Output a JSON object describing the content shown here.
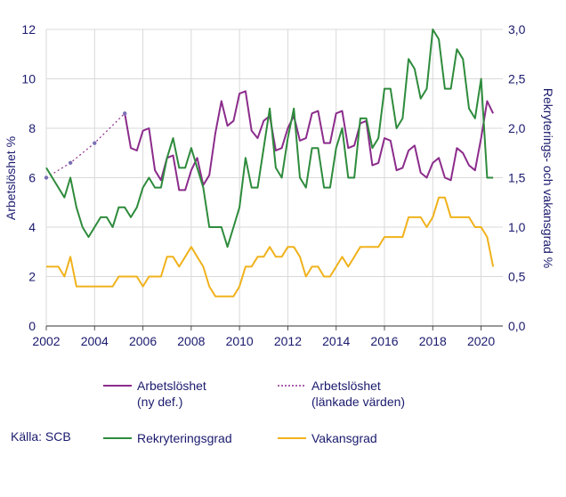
{
  "chart_data": {
    "type": "line",
    "source": "Källa: SCB",
    "x_ticks": [
      "2002",
      "2004",
      "2006",
      "2008",
      "2010",
      "2012",
      "2014",
      "2016",
      "2018",
      "2020"
    ],
    "y_left": {
      "label": "Arbetslöshet  %",
      "range": [
        0,
        12
      ],
      "ticks": [
        "0",
        "2",
        "4",
        "6",
        "8",
        "10",
        "12"
      ]
    },
    "y_right": {
      "label": "Rekryterings- och vakansgrad %",
      "range": [
        0,
        3
      ],
      "ticks": [
        "0,0",
        "0,5",
        "1,0",
        "1,5",
        "2,0",
        "2,5",
        "3,0"
      ]
    },
    "grid": true,
    "legend": [
      {
        "label_line1": "Arbetslöshet",
        "label_line2": "(ny def.)",
        "color": "#8b2c8b",
        "style": "solid"
      },
      {
        "label_line1": "Arbetslöshet",
        "label_line2": "(länkade värden)",
        "color": "#8b2c8b",
        "style": "dotted"
      },
      {
        "label_line1": "Rekryteringsgrad",
        "label_line2": "",
        "color": "#2e8b3c",
        "style": "solid"
      },
      {
        "label_line1": "Vakansgrad",
        "label_line2": "",
        "color": "#f0b21c",
        "style": "solid"
      }
    ],
    "series": [
      {
        "name": "Arbetslöshet (ny def.)",
        "axis": "left",
        "color": "#8b2c8b",
        "style": "solid",
        "x": [
          2005.25,
          2005.5,
          2005.75,
          2006,
          2006.25,
          2006.5,
          2006.75,
          2007,
          2007.25,
          2007.5,
          2007.75,
          2008,
          2008.25,
          2008.5,
          2008.75,
          2009,
          2009.25,
          2009.5,
          2009.75,
          2010,
          2010.25,
          2010.5,
          2010.75,
          2011,
          2011.25,
          2011.5,
          2011.75,
          2012,
          2012.25,
          2012.5,
          2012.75,
          2013,
          2013.25,
          2013.5,
          2013.75,
          2014,
          2014.25,
          2014.5,
          2014.75,
          2015,
          2015.25,
          2015.5,
          2015.75,
          2016,
          2016.25,
          2016.5,
          2016.75,
          2017,
          2017.25,
          2017.5,
          2017.75,
          2018,
          2018.25,
          2018.5,
          2018.75,
          2019,
          2019.25,
          2019.5,
          2019.75,
          2020,
          2020.25,
          2020.5
        ],
        "y": [
          8.6,
          7.2,
          7.1,
          7.9,
          8.0,
          6.3,
          5.9,
          6.8,
          6.9,
          5.5,
          5.5,
          6.3,
          6.8,
          5.7,
          6.1,
          7.8,
          9.1,
          8.1,
          8.3,
          9.4,
          9.5,
          7.9,
          7.6,
          8.3,
          8.5,
          7.1,
          7.2,
          8.0,
          8.5,
          7.5,
          7.6,
          8.6,
          8.7,
          7.4,
          7.4,
          8.6,
          8.7,
          7.2,
          7.3,
          8.2,
          8.3,
          6.5,
          6.6,
          7.6,
          7.5,
          6.3,
          6.4,
          7.1,
          7.3,
          6.2,
          6.0,
          6.6,
          6.8,
          6.0,
          5.9,
          7.2,
          7.0,
          6.5,
          6.3,
          7.6,
          9.1,
          8.6
        ]
      },
      {
        "name": "Arbetslöshet (länkade värden)",
        "axis": "left",
        "color": "#8b2c8b",
        "style": "dotted",
        "x": [
          2002,
          2003,
          2004,
          2005.25
        ],
        "y": [
          6.0,
          6.6,
          7.4,
          8.6
        ]
      },
      {
        "name": "Rekryteringsgrad",
        "axis": "right",
        "color": "#2e8b3c",
        "style": "solid",
        "x": [
          2002,
          2002.25,
          2002.5,
          2002.75,
          2003,
          2003.25,
          2003.5,
          2003.75,
          2004,
          2004.25,
          2004.5,
          2004.75,
          2005,
          2005.25,
          2005.5,
          2005.75,
          2006,
          2006.25,
          2006.5,
          2006.75,
          2007,
          2007.25,
          2007.5,
          2007.75,
          2008,
          2008.25,
          2008.5,
          2008.75,
          2009,
          2009.25,
          2009.5,
          2009.75,
          2010,
          2010.25,
          2010.5,
          2010.75,
          2011,
          2011.25,
          2011.5,
          2011.75,
          2012,
          2012.25,
          2012.5,
          2012.75,
          2013,
          2013.25,
          2013.5,
          2013.75,
          2014,
          2014.25,
          2014.5,
          2014.75,
          2015,
          2015.25,
          2015.5,
          2015.75,
          2016,
          2016.25,
          2016.5,
          2016.75,
          2017,
          2017.25,
          2017.5,
          2017.75,
          2018,
          2018.25,
          2018.5,
          2018.75,
          2019,
          2019.25,
          2019.5,
          2019.75,
          2020,
          2020.25,
          2020.5
        ],
        "y": [
          1.6,
          1.5,
          1.4,
          1.3,
          1.5,
          1.2,
          1.0,
          0.9,
          1.0,
          1.1,
          1.1,
          1.0,
          1.2,
          1.2,
          1.1,
          1.2,
          1.4,
          1.5,
          1.4,
          1.4,
          1.7,
          1.9,
          1.6,
          1.6,
          1.8,
          1.6,
          1.4,
          1.0,
          1.0,
          1.0,
          0.8,
          1.0,
          1.2,
          1.7,
          1.4,
          1.4,
          1.8,
          2.2,
          1.6,
          1.5,
          1.9,
          2.2,
          1.5,
          1.4,
          1.8,
          1.8,
          1.4,
          1.4,
          1.8,
          2.0,
          1.5,
          1.5,
          2.1,
          2.1,
          1.8,
          1.9,
          2.4,
          2.4,
          2.0,
          2.1,
          2.7,
          2.6,
          2.3,
          2.4,
          3.0,
          2.9,
          2.4,
          2.4,
          2.8,
          2.7,
          2.2,
          2.1,
          2.5,
          1.5,
          1.5
        ]
      },
      {
        "name": "Vakansgrad",
        "axis": "right",
        "color": "#f0b21c",
        "style": "solid",
        "x": [
          2002,
          2002.25,
          2002.5,
          2002.75,
          2003,
          2003.25,
          2003.5,
          2003.75,
          2004,
          2004.25,
          2004.5,
          2004.75,
          2005,
          2005.25,
          2005.5,
          2005.75,
          2006,
          2006.25,
          2006.5,
          2006.75,
          2007,
          2007.25,
          2007.5,
          2007.75,
          2008,
          2008.25,
          2008.5,
          2008.75,
          2009,
          2009.25,
          2009.5,
          2009.75,
          2010,
          2010.25,
          2010.5,
          2010.75,
          2011,
          2011.25,
          2011.5,
          2011.75,
          2012,
          2012.25,
          2012.5,
          2012.75,
          2013,
          2013.25,
          2013.5,
          2013.75,
          2014,
          2014.25,
          2014.5,
          2014.75,
          2015,
          2015.25,
          2015.5,
          2015.75,
          2016,
          2016.25,
          2016.5,
          2016.75,
          2017,
          2017.25,
          2017.5,
          2017.75,
          2018,
          2018.25,
          2018.5,
          2018.75,
          2019,
          2019.25,
          2019.5,
          2019.75,
          2020,
          2020.25,
          2020.5
        ],
        "y": [
          0.6,
          0.6,
          0.6,
          0.5,
          0.7,
          0.4,
          0.4,
          0.4,
          0.4,
          0.4,
          0.4,
          0.4,
          0.5,
          0.5,
          0.5,
          0.5,
          0.4,
          0.5,
          0.5,
          0.5,
          0.7,
          0.7,
          0.6,
          0.7,
          0.8,
          0.7,
          0.6,
          0.4,
          0.3,
          0.3,
          0.3,
          0.3,
          0.4,
          0.6,
          0.6,
          0.7,
          0.7,
          0.8,
          0.7,
          0.7,
          0.8,
          0.8,
          0.7,
          0.5,
          0.6,
          0.6,
          0.5,
          0.5,
          0.6,
          0.7,
          0.6,
          0.7,
          0.8,
          0.8,
          0.8,
          0.8,
          0.9,
          0.9,
          0.9,
          0.9,
          1.1,
          1.1,
          1.1,
          1.0,
          1.1,
          1.3,
          1.3,
          1.1,
          1.1,
          1.1,
          1.1,
          1.0,
          1.0,
          0.9,
          0.6
        ]
      }
    ]
  }
}
